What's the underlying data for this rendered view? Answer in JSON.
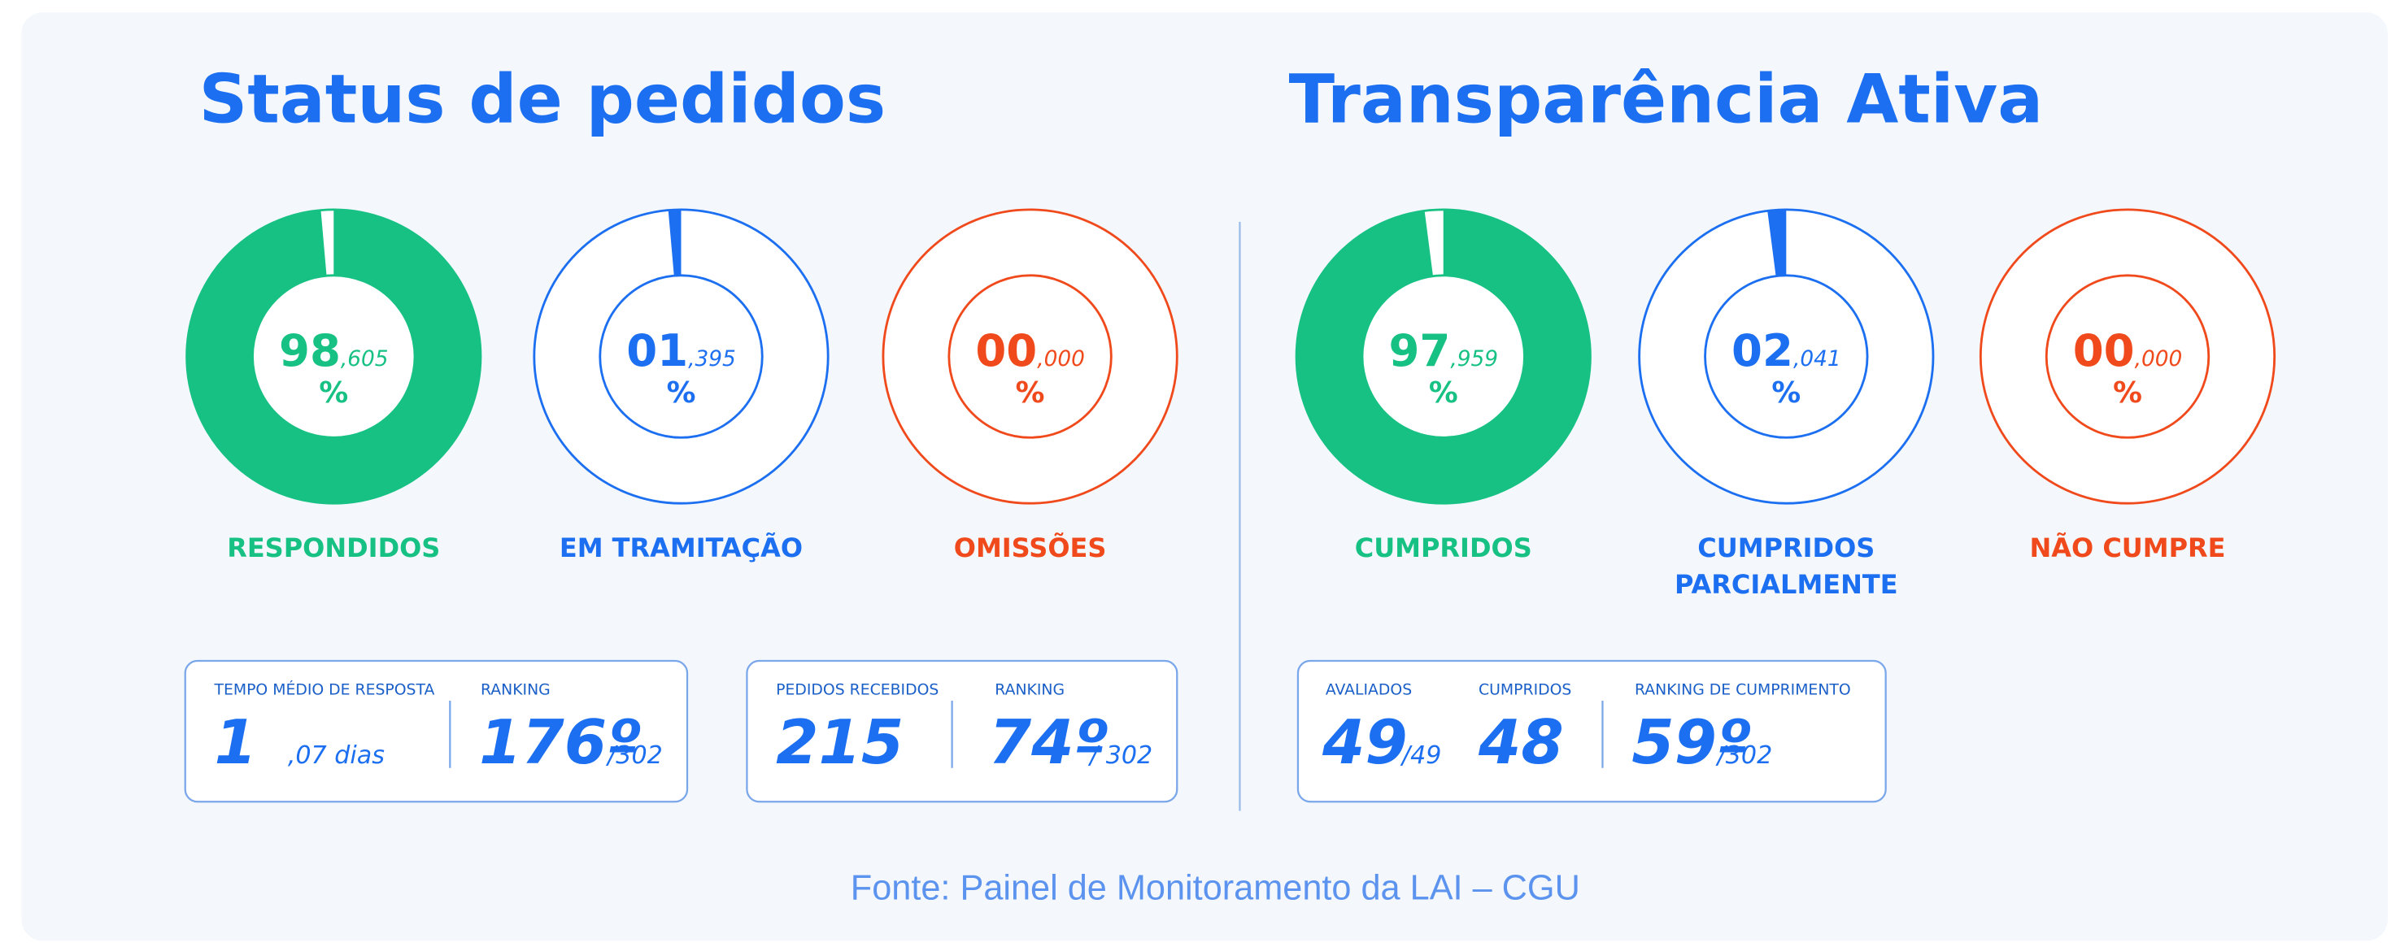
{
  "sections": [
    {
      "title": "Status de pedidos",
      "donuts": [
        {
          "label": [
            "RESPONDIDOS"
          ],
          "value": 98.605,
          "int": "98",
          "dec": ",605",
          "unit": "%",
          "color": "#17c183"
        },
        {
          "label": [
            "EM TRAMITAÇÃO"
          ],
          "value": 1.395,
          "int": "01",
          "dec": ",395",
          "unit": "%",
          "color": "#1b6ff0"
        },
        {
          "label": [
            "OMISSÕES"
          ],
          "value": 0,
          "int": "00",
          "dec": ",000",
          "unit": "%",
          "color": "#f04a1c"
        }
      ],
      "boxes": [
        {
          "items": [
            {
              "label": "TEMPO MÉDIO DE RESPOSTA",
              "main": "1",
              "sub": ",07 dias"
            },
            {
              "label": "RANKING",
              "main": "176º",
              "sub": "/302"
            }
          ]
        },
        {
          "items": [
            {
              "label": "PEDIDOS RECEBIDOS",
              "main": "215"
            },
            {
              "label": "RANKING",
              "main": "74º",
              "sub": "/ 302"
            }
          ]
        }
      ]
    },
    {
      "title": "Transparência Ativa",
      "donuts": [
        {
          "label": [
            "CUMPRIDOS"
          ],
          "value": 97.959,
          "int": "97",
          "dec": ",959",
          "unit": "%",
          "color": "#17c183"
        },
        {
          "label": [
            "CUMPRIDOS",
            "PARCIALMENTE"
          ],
          "value": 2.041,
          "int": "02",
          "dec": ",041",
          "unit": "%",
          "color": "#1b6ff0"
        },
        {
          "label": [
            "NÃO CUMPRE"
          ],
          "value": 0,
          "int": "00",
          "dec": ",000",
          "unit": "%",
          "color": "#f04a1c"
        }
      ],
      "boxes": [
        {
          "items": [
            {
              "label": "AVALIADOS",
              "main": "49",
              "sub": "/49"
            },
            {
              "label": "CUMPRIDOS",
              "main": "48"
            },
            {
              "label": "RANKING DE CUMPRIMENTO",
              "main": "59º",
              "sub": "/302"
            }
          ]
        }
      ]
    }
  ],
  "footer": "Fonte: Painel de Monitoramento da LAI – CGU"
}
